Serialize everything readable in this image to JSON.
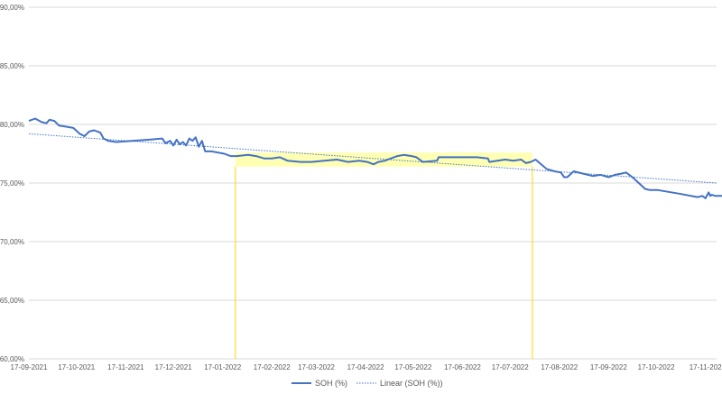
{
  "chart_data": {
    "type": "line",
    "title": "",
    "xlabel": "",
    "ylabel": "",
    "ylim": [
      60,
      90
    ],
    "xlim": [
      "2021-09-17",
      "2022-11-24"
    ],
    "y_ticks": [
      "90,00%",
      "85,00%",
      "80,00%",
      "75,00%",
      "70,00%",
      "65,00%",
      "60,00%"
    ],
    "y_tick_values": [
      90,
      85,
      80,
      75,
      70,
      65,
      60
    ],
    "x_ticks": [
      "17-09-2021",
      "17-10-2021",
      "17-11-2021",
      "17-12-2021",
      "17-01-2022",
      "17-02-2022",
      "17-03-2022",
      "17-04-2022",
      "17-05-2022",
      "17-06-2022",
      "17-07-2022",
      "17-08-2022",
      "17-09-2022",
      "17-10-2022",
      "17-11-202"
    ],
    "x_tick_dates": [
      "2021-09-17",
      "2021-10-17",
      "2021-11-17",
      "2021-12-17",
      "2022-01-17",
      "2022-02-17",
      "2022-03-17",
      "2022-04-17",
      "2022-05-17",
      "2022-06-17",
      "2022-07-17",
      "2022-08-17",
      "2022-09-17",
      "2022-10-17",
      "2022-11-17"
    ],
    "grid": true,
    "legend_position": "bottom",
    "series": [
      {
        "name": "SOH (%)",
        "style": "solid",
        "color": "#4472c4",
        "points": [
          [
            "2021-09-17",
            80.3
          ],
          [
            "2021-09-21",
            80.5
          ],
          [
            "2021-09-25",
            80.2
          ],
          [
            "2021-09-28",
            80.1
          ],
          [
            "2021-09-30",
            80.4
          ],
          [
            "2021-10-03",
            80.3
          ],
          [
            "2021-10-06",
            79.9
          ],
          [
            "2021-10-11",
            79.8
          ],
          [
            "2021-10-15",
            79.7
          ],
          [
            "2021-10-19",
            79.2
          ],
          [
            "2021-10-22",
            79.0
          ],
          [
            "2021-10-25",
            79.4
          ],
          [
            "2021-10-28",
            79.5
          ],
          [
            "2021-11-01",
            79.3
          ],
          [
            "2021-11-03",
            78.8
          ],
          [
            "2021-11-06",
            78.6
          ],
          [
            "2021-11-11",
            78.5
          ],
          [
            "2021-11-21",
            78.6
          ],
          [
            "2021-12-02",
            78.7
          ],
          [
            "2021-12-10",
            78.8
          ],
          [
            "2021-12-12",
            78.4
          ],
          [
            "2021-12-15",
            78.6
          ],
          [
            "2021-12-17",
            78.2
          ],
          [
            "2021-12-19",
            78.7
          ],
          [
            "2021-12-21",
            78.3
          ],
          [
            "2021-12-23",
            78.5
          ],
          [
            "2021-12-25",
            78.2
          ],
          [
            "2021-12-27",
            78.8
          ],
          [
            "2021-12-29",
            78.6
          ],
          [
            "2021-12-31",
            78.9
          ],
          [
            "2022-01-02",
            78.1
          ],
          [
            "2022-01-04",
            78.6
          ],
          [
            "2022-01-06",
            77.7
          ],
          [
            "2022-01-10",
            77.7
          ],
          [
            "2022-01-14",
            77.6
          ],
          [
            "2022-01-18",
            77.5
          ],
          [
            "2022-01-22",
            77.3
          ],
          [
            "2022-01-26",
            77.3
          ],
          [
            "2022-02-02",
            77.4
          ],
          [
            "2022-02-07",
            77.3
          ],
          [
            "2022-02-12",
            77.1
          ],
          [
            "2022-02-17",
            77.1
          ],
          [
            "2022-02-22",
            77.2
          ],
          [
            "2022-02-27",
            76.9
          ],
          [
            "2022-03-07",
            76.8
          ],
          [
            "2022-03-14",
            76.8
          ],
          [
            "2022-03-22",
            76.9
          ],
          [
            "2022-03-30",
            77.0
          ],
          [
            "2022-04-06",
            76.8
          ],
          [
            "2022-04-13",
            76.9
          ],
          [
            "2022-04-18",
            76.8
          ],
          [
            "2022-04-22",
            76.6
          ],
          [
            "2022-04-25",
            76.8
          ],
          [
            "2022-04-29",
            76.9
          ],
          [
            "2022-05-03",
            77.1
          ],
          [
            "2022-05-07",
            77.3
          ],
          [
            "2022-05-11",
            77.4
          ],
          [
            "2022-05-16",
            77.3
          ],
          [
            "2022-05-19",
            77.2
          ],
          [
            "2022-05-23",
            76.8
          ],
          [
            "2022-06-01",
            76.9
          ],
          [
            "2022-06-02",
            77.2
          ],
          [
            "2022-06-26",
            77.2
          ],
          [
            "2022-07-03",
            77.1
          ],
          [
            "2022-07-04",
            76.8
          ],
          [
            "2022-07-09",
            76.9
          ],
          [
            "2022-07-14",
            77.0
          ],
          [
            "2022-07-19",
            76.9
          ],
          [
            "2022-07-24",
            77.0
          ],
          [
            "2022-07-27",
            76.7
          ],
          [
            "2022-07-30",
            76.8
          ],
          [
            "2022-08-02",
            77.0
          ],
          [
            "2022-08-09",
            76.2
          ],
          [
            "2022-08-14",
            76.0
          ],
          [
            "2022-08-18",
            75.9
          ],
          [
            "2022-08-20",
            75.5
          ],
          [
            "2022-08-22",
            75.5
          ],
          [
            "2022-08-26",
            76.0
          ],
          [
            "2022-09-01",
            75.8
          ],
          [
            "2022-09-07",
            75.6
          ],
          [
            "2022-09-12",
            75.7
          ],
          [
            "2022-09-17",
            75.5
          ],
          [
            "2022-09-21",
            75.7
          ],
          [
            "2022-09-25",
            75.8
          ],
          [
            "2022-09-28",
            75.9
          ],
          [
            "2022-10-02",
            75.5
          ],
          [
            "2022-10-06",
            75.0
          ],
          [
            "2022-10-10",
            74.5
          ],
          [
            "2022-10-13",
            74.4
          ],
          [
            "2022-10-18",
            74.4
          ],
          [
            "2022-10-31",
            74.1
          ],
          [
            "2022-11-12",
            73.8
          ],
          [
            "2022-11-15",
            73.9
          ],
          [
            "2022-11-17",
            73.7
          ],
          [
            "2022-11-19",
            74.2
          ],
          [
            "2022-11-20",
            73.9
          ],
          [
            "2022-11-21",
            74.0
          ],
          [
            "2022-11-23",
            73.9
          ],
          [
            "2022-11-30",
            73.9
          ],
          [
            "2022-12-08",
            73.9
          ]
        ]
      },
      {
        "name": "Linear (SOH (%))",
        "style": "dotted",
        "color": "#4472c4",
        "points": [
          [
            "2021-09-17",
            79.2
          ],
          [
            "2022-11-24",
            75.0
          ]
        ]
      }
    ],
    "highlight": {
      "x_start": "2022-01-25",
      "x_end": "2022-07-31",
      "y_low": 76.4,
      "y_high": 77.6,
      "fill_color": "#ffff99",
      "line_color": "#ffd700"
    }
  }
}
